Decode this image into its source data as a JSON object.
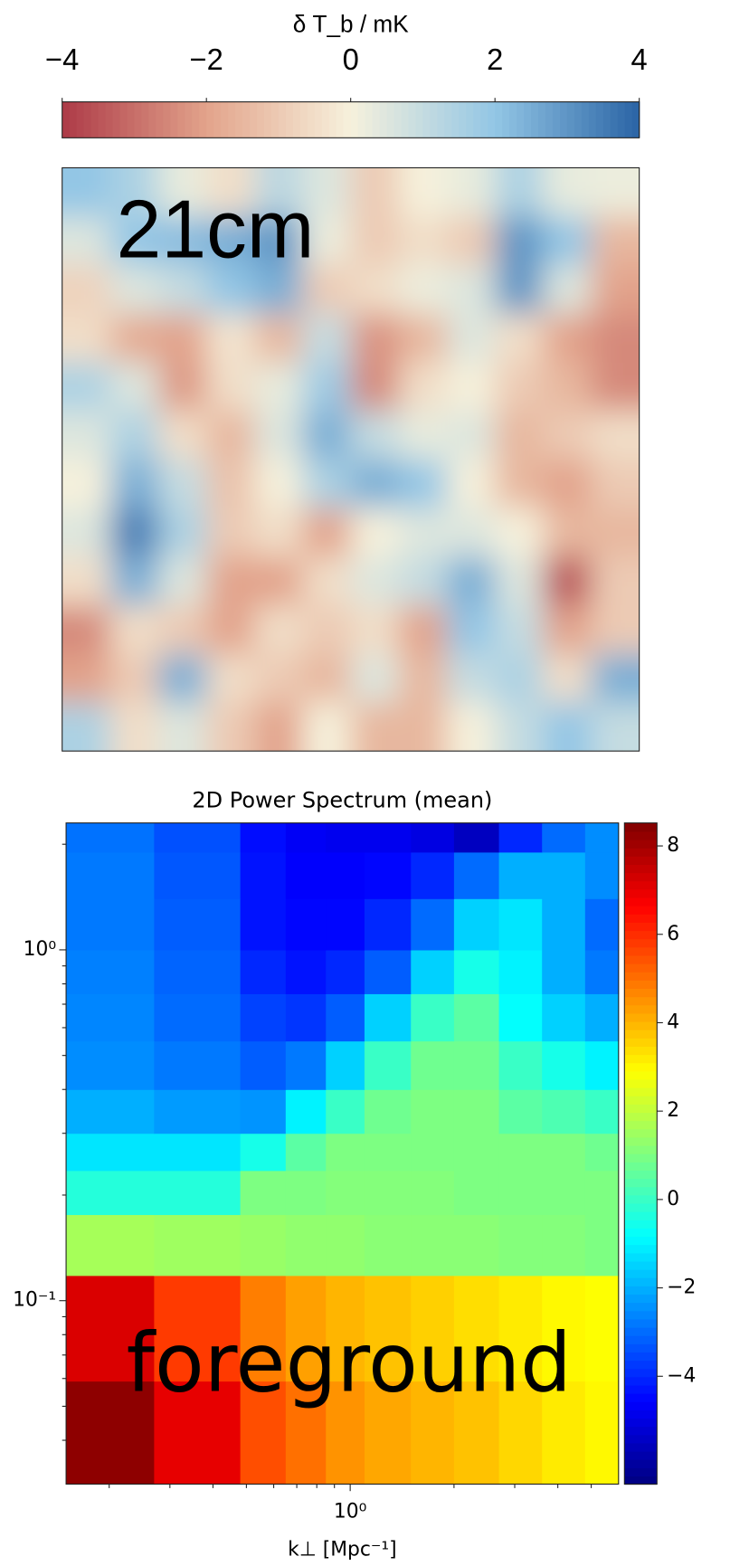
{
  "chart_data": [
    {
      "type": "heatmap",
      "annotation": "21cm",
      "colormap": "RdBu",
      "colorbar": {
        "label": "δ T_b / mK",
        "lim": [
          -4,
          4
        ],
        "ticks": [
          {
            "value": -4,
            "label": "−4"
          },
          {
            "value": -2,
            "label": "−2"
          },
          0,
          2,
          4
        ],
        "position": "top"
      },
      "z": [
        [
          2,
          1.5,
          0.3,
          -0.5,
          1.2,
          0.5,
          -1,
          0,
          0.3,
          1.5,
          0.3,
          0.2
        ],
        [
          0.5,
          2,
          2.2,
          2.5,
          3,
          0.2,
          -1,
          -0.5,
          -1,
          3,
          2,
          -1.5
        ],
        [
          -0.8,
          0.5,
          1,
          2,
          2.5,
          -1,
          -0.5,
          0.2,
          0.5,
          3,
          0.5,
          -2
        ],
        [
          -0.5,
          -1.8,
          -2,
          -0.3,
          -1.5,
          1,
          -2.3,
          -1.5,
          0.5,
          -0.5,
          -2,
          -2.5
        ],
        [
          1.5,
          0.5,
          -2.2,
          -0.5,
          0.3,
          1.8,
          -2.5,
          -0.5,
          0,
          -1,
          -1.5,
          -2.5
        ],
        [
          0.5,
          1.5,
          -0.5,
          -1.5,
          0.5,
          2.5,
          1,
          0.3,
          0.5,
          -1.5,
          -1,
          -0.5
        ],
        [
          0,
          2.5,
          1,
          -1.2,
          0,
          1.5,
          2.5,
          2,
          0,
          -1.5,
          -2,
          -1
        ],
        [
          0.5,
          3.5,
          1.5,
          -1,
          -0.5,
          -2,
          0,
          0.5,
          0.5,
          0,
          -1.5,
          -1.5
        ],
        [
          -0.5,
          2.5,
          0.5,
          -2,
          -2,
          -0.5,
          0.5,
          1,
          2.5,
          0.5,
          -3.5,
          -1
        ],
        [
          -2.5,
          -0.5,
          -1,
          -2,
          -0.5,
          -1,
          -0.5,
          -2,
          2,
          1,
          -2,
          -1
        ],
        [
          -2,
          -1,
          2.5,
          -0.5,
          -1,
          -1.5,
          0.5,
          -1.5,
          1,
          1.5,
          -0.5,
          2.5
        ],
        [
          1.5,
          -0.5,
          0.5,
          -1,
          -2,
          0,
          -1.5,
          -1.5,
          0,
          1,
          2,
          1
        ]
      ]
    },
    {
      "type": "heatmap",
      "title": "2D Power Spectrum (mean)",
      "annotation": "foreground",
      "colormap": "jet",
      "x_label": "k⊥ [Mpc⁻¹]",
      "log_x": true,
      "log_y": true,
      "xlim": [
        0.15,
        6.0
      ],
      "ylim": [
        0.03,
        2.3
      ],
      "xticks": [
        {
          "value": 1,
          "label": "10⁰"
        }
      ],
      "yticks": [
        {
          "value": 0.1,
          "label": "10⁻¹"
        },
        {
          "value": 1,
          "label": "10⁰"
        }
      ],
      "colorbar": {
        "lim": [
          -6.44,
          8.52
        ],
        "ticks": [
          {
            "value": -4,
            "label": "−4"
          },
          {
            "value": -2,
            "label": "−2"
          },
          0,
          2,
          4,
          6,
          8
        ],
        "position": "right"
      },
      "x_edges": [
        0.15,
        0.27,
        0.48,
        0.65,
        0.85,
        1.1,
        1.5,
        2.0,
        2.7,
        3.6,
        4.8,
        6.0
      ],
      "y_edges": [
        0.03,
        0.059,
        0.118,
        0.176,
        0.235,
        0.3,
        0.4,
        0.55,
        0.75,
        1.0,
        1.4,
        1.9,
        2.3
      ],
      "z": [
        [
          8.3,
          7,
          5.5,
          5,
          4.5,
          4.2,
          4,
          3.8,
          3.5,
          3.2,
          3
        ],
        [
          7.2,
          5.8,
          4.8,
          4.3,
          4,
          3.8,
          3.6,
          3.4,
          3.2,
          3,
          2.9
        ],
        [
          1.6,
          1.5,
          1.4,
          1.3,
          1.3,
          1.2,
          1.2,
          1.2,
          1.1,
          1.1,
          1.0
        ],
        [
          -0.3,
          -0.3,
          1.0,
          1.0,
          1.1,
          1.1,
          1.1,
          1,
          1,
          1,
          1
        ],
        [
          -1.2,
          -1.2,
          -0.5,
          0.5,
          1,
          1,
          1,
          1,
          1,
          1,
          0.8
        ],
        [
          -2,
          -2.3,
          -2.4,
          -1,
          0,
          0.8,
          1,
          1,
          0.5,
          0.3,
          0
        ],
        [
          -2.5,
          -2.8,
          -3.2,
          -2.8,
          -1.5,
          0,
          0.8,
          0.8,
          0,
          -0.5,
          -1
        ],
        [
          -2.6,
          -3,
          -3.6,
          -3.8,
          -3.2,
          -1.5,
          0,
          0.5,
          -0.8,
          -1.5,
          -2
        ],
        [
          -2.7,
          -3.1,
          -4,
          -4.3,
          -4,
          -3.2,
          -1.5,
          -0.5,
          -1,
          -2,
          -2.8
        ],
        [
          -2.8,
          -3.2,
          -4.3,
          -4.5,
          -4.5,
          -4,
          -3,
          -1.5,
          -1.2,
          -2,
          -3
        ],
        [
          -2.8,
          -3.3,
          -4.3,
          -4.6,
          -4.6,
          -4.5,
          -4,
          -3,
          -2,
          -2,
          -2.5
        ],
        [
          -2.9,
          -3.4,
          -4.4,
          -4.7,
          -4.8,
          -4.8,
          -5,
          -5.5,
          -4,
          -3,
          -2.5
        ]
      ]
    }
  ]
}
